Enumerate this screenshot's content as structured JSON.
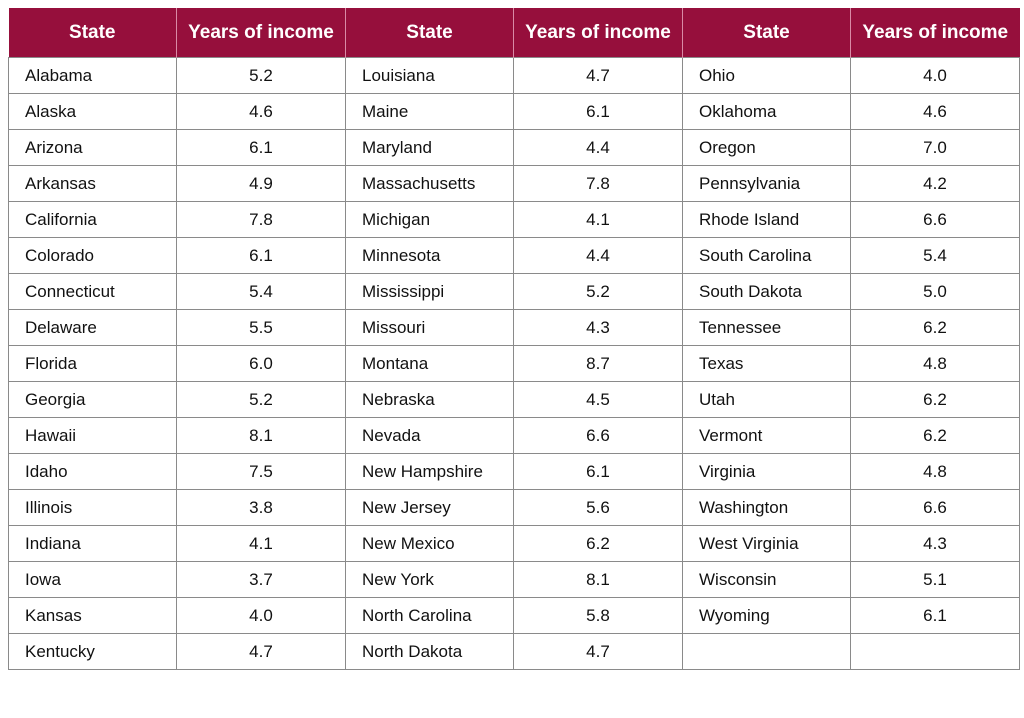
{
  "accent_color": "#960f3c",
  "chart_data": {
    "type": "table",
    "columns": [
      "State",
      "Years of income",
      "State",
      "Years of income",
      "State",
      "Years of income"
    ],
    "rows": [
      [
        "Alabama",
        "5.2",
        "Louisiana",
        "4.7",
        "Ohio",
        "4.0"
      ],
      [
        "Alaska",
        "4.6",
        "Maine",
        "6.1",
        "Oklahoma",
        "4.6"
      ],
      [
        "Arizona",
        "6.1",
        "Maryland",
        "4.4",
        "Oregon",
        "7.0"
      ],
      [
        "Arkansas",
        "4.9",
        "Massachusetts",
        "7.8",
        "Pennsylvania",
        "4.2"
      ],
      [
        "California",
        "7.8",
        "Michigan",
        "4.1",
        "Rhode Island",
        "6.6"
      ],
      [
        "Colorado",
        "6.1",
        "Minnesota",
        "4.4",
        "South Carolina",
        "5.4"
      ],
      [
        "Connecticut",
        "5.4",
        "Mississippi",
        "5.2",
        "South Dakota",
        "5.0"
      ],
      [
        "Delaware",
        "5.5",
        "Missouri",
        "4.3",
        "Tennessee",
        "6.2"
      ],
      [
        "Florida",
        "6.0",
        "Montana",
        "8.7",
        "Texas",
        "4.8"
      ],
      [
        "Georgia",
        "5.2",
        "Nebraska",
        "4.5",
        "Utah",
        "6.2"
      ],
      [
        "Hawaii",
        "8.1",
        "Nevada",
        "6.6",
        "Vermont",
        "6.2"
      ],
      [
        "Idaho",
        "7.5",
        "New Hampshire",
        "6.1",
        "Virginia",
        "4.8"
      ],
      [
        "Illinois",
        "3.8",
        "New Jersey",
        "5.6",
        "Washington",
        "6.6"
      ],
      [
        "Indiana",
        "4.1",
        "New Mexico",
        "6.2",
        "West Virginia",
        "4.3"
      ],
      [
        "Iowa",
        "3.7",
        "New York",
        "8.1",
        "Wisconsin",
        "5.1"
      ],
      [
        "Kansas",
        "4.0",
        "North Carolina",
        "5.8",
        "Wyoming",
        "6.1"
      ],
      [
        "Kentucky",
        "4.7",
        "North Dakota",
        "4.7",
        "",
        ""
      ]
    ]
  }
}
